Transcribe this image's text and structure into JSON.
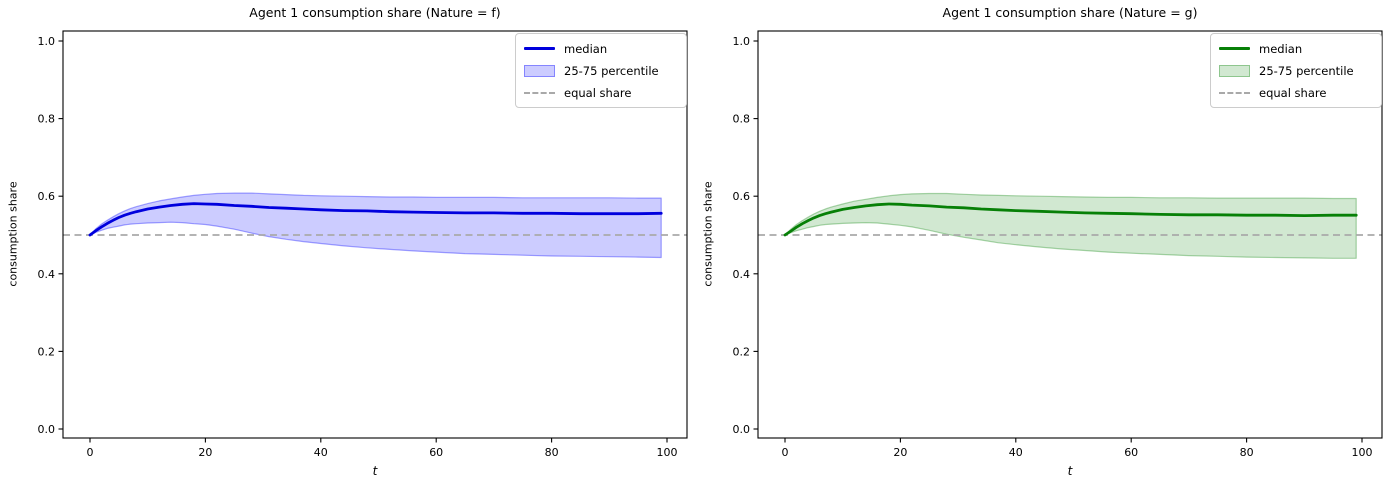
{
  "figure": {
    "background": "#ffffff",
    "equal_share_color": "#a9a9a9"
  },
  "chart_data": [
    {
      "type": "line",
      "title": "Agent 1 consumption share (Nature = f)",
      "xlabel": "t",
      "ylabel": "consumption share",
      "xticks": [
        "0",
        "20",
        "40",
        "60",
        "80",
        "100"
      ],
      "xtick_values": [
        0,
        20,
        40,
        60,
        80,
        100
      ],
      "yticks": [
        "0.0",
        "0.2",
        "0.4",
        "0.6",
        "0.8",
        "1.0"
      ],
      "ytick_values": [
        0.0,
        0.2,
        0.4,
        0.6,
        0.8,
        1.0
      ],
      "xlim": [
        -5,
        104
      ],
      "ylim": [
        -0.025,
        1.025
      ],
      "grid": false,
      "legend": {
        "position": "upper right",
        "entries": [
          "median",
          "25-75 percentile",
          "equal share"
        ]
      },
      "equal_share": 0.5,
      "colors": {
        "median": "#0000dd",
        "band_fill": "rgba(0,0,255,0.2)",
        "band_edge": "rgba(0,0,255,0.35)",
        "equal_share": "#a9a9a9"
      },
      "x": [
        0,
        1,
        2,
        3,
        4,
        5,
        6,
        7,
        8,
        10,
        12,
        14,
        16,
        18,
        20,
        22,
        25,
        28,
        31,
        34,
        37,
        40,
        44,
        48,
        52,
        56,
        60,
        65,
        70,
        75,
        80,
        85,
        90,
        95,
        99
      ],
      "series": [
        {
          "name": "median",
          "values": [
            0.5,
            0.511,
            0.521,
            0.53,
            0.538,
            0.545,
            0.551,
            0.556,
            0.56,
            0.567,
            0.572,
            0.576,
            0.579,
            0.581,
            0.58,
            0.579,
            0.576,
            0.574,
            0.571,
            0.569,
            0.567,
            0.565,
            0.563,
            0.562,
            0.56,
            0.559,
            0.558,
            0.557,
            0.557,
            0.556,
            0.556,
            0.555,
            0.555,
            0.555,
            0.556
          ]
        },
        {
          "name": "p25",
          "values": [
            0.5,
            0.507,
            0.512,
            0.517,
            0.52,
            0.523,
            0.526,
            0.528,
            0.529,
            0.531,
            0.532,
            0.533,
            0.532,
            0.529,
            0.527,
            0.523,
            0.515,
            0.505,
            0.496,
            0.489,
            0.483,
            0.478,
            0.472,
            0.467,
            0.463,
            0.459,
            0.456,
            0.452,
            0.45,
            0.448,
            0.446,
            0.445,
            0.444,
            0.443,
            0.442
          ]
        },
        {
          "name": "p75",
          "values": [
            0.5,
            0.516,
            0.528,
            0.538,
            0.547,
            0.555,
            0.562,
            0.568,
            0.573,
            0.581,
            0.588,
            0.593,
            0.598,
            0.602,
            0.605,
            0.607,
            0.608,
            0.608,
            0.606,
            0.604,
            0.602,
            0.601,
            0.6,
            0.599,
            0.598,
            0.598,
            0.597,
            0.597,
            0.597,
            0.596,
            0.596,
            0.596,
            0.596,
            0.595,
            0.595
          ]
        }
      ]
    },
    {
      "type": "line",
      "title": "Agent 1 consumption share (Nature = g)",
      "xlabel": "t",
      "ylabel": "consumption share",
      "xticks": [
        "0",
        "20",
        "40",
        "60",
        "80",
        "100"
      ],
      "xtick_values": [
        0,
        20,
        40,
        60,
        80,
        100
      ],
      "yticks": [
        "0.0",
        "0.2",
        "0.4",
        "0.6",
        "0.8",
        "1.0"
      ],
      "ytick_values": [
        0.0,
        0.2,
        0.4,
        0.6,
        0.8,
        1.0
      ],
      "xlim": [
        -5,
        104
      ],
      "ylim": [
        -0.025,
        1.025
      ],
      "grid": false,
      "legend": {
        "position": "upper right",
        "entries": [
          "median",
          "25-75 percentile",
          "equal share"
        ]
      },
      "equal_share": 0.5,
      "colors": {
        "median": "#078007",
        "band_fill": "rgba(0,128,0,0.18)",
        "band_edge": "rgba(0,128,0,0.32)",
        "equal_share": "#a9a9a9"
      },
      "x": [
        0,
        1,
        2,
        3,
        4,
        5,
        6,
        7,
        8,
        10,
        12,
        14,
        16,
        18,
        20,
        22,
        25,
        28,
        31,
        34,
        37,
        40,
        44,
        48,
        52,
        56,
        60,
        65,
        70,
        75,
        80,
        85,
        90,
        95,
        99
      ],
      "series": [
        {
          "name": "median",
          "values": [
            0.5,
            0.51,
            0.52,
            0.529,
            0.537,
            0.544,
            0.55,
            0.555,
            0.559,
            0.566,
            0.571,
            0.575,
            0.578,
            0.58,
            0.579,
            0.577,
            0.575,
            0.572,
            0.57,
            0.567,
            0.565,
            0.563,
            0.561,
            0.559,
            0.557,
            0.556,
            0.555,
            0.553,
            0.552,
            0.552,
            0.551,
            0.551,
            0.55,
            0.551,
            0.551
          ]
        },
        {
          "name": "p25",
          "values": [
            0.5,
            0.506,
            0.511,
            0.515,
            0.519,
            0.522,
            0.525,
            0.527,
            0.528,
            0.53,
            0.531,
            0.532,
            0.531,
            0.528,
            0.525,
            0.521,
            0.512,
            0.502,
            0.494,
            0.487,
            0.48,
            0.475,
            0.469,
            0.464,
            0.46,
            0.456,
            0.453,
            0.45,
            0.447,
            0.445,
            0.443,
            0.442,
            0.441,
            0.44,
            0.44
          ]
        },
        {
          "name": "p75",
          "values": [
            0.5,
            0.515,
            0.527,
            0.537,
            0.546,
            0.554,
            0.561,
            0.567,
            0.572,
            0.58,
            0.587,
            0.592,
            0.597,
            0.601,
            0.604,
            0.606,
            0.607,
            0.607,
            0.605,
            0.603,
            0.602,
            0.601,
            0.6,
            0.599,
            0.598,
            0.597,
            0.597,
            0.596,
            0.596,
            0.595,
            0.595,
            0.595,
            0.595,
            0.594,
            0.594
          ]
        }
      ]
    }
  ]
}
